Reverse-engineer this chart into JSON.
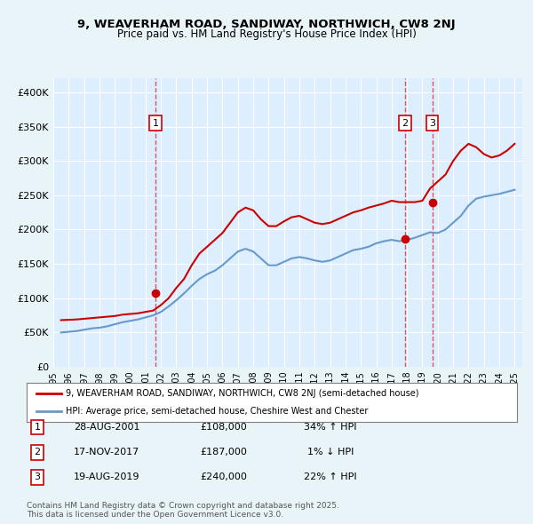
{
  "title1": "9, WEAVERHAM ROAD, SANDIWAY, NORTHWICH, CW8 2NJ",
  "title2": "Price paid vs. HM Land Registry's House Price Index (HPI)",
  "xlabel": "",
  "ylabel": "",
  "background_color": "#e8f4f8",
  "plot_bg_color": "#ddeeff",
  "line1_color": "#cc0000",
  "line2_color": "#6699cc",
  "grid_color": "#ffffff",
  "legend_box_color": "#ffffff",
  "sale_marker_color": "#cc0000",
  "sale_vline_color": "#dd4444",
  "ylim": [
    0,
    420000
  ],
  "yticks": [
    0,
    50000,
    100000,
    150000,
    200000,
    250000,
    300000,
    350000,
    400000
  ],
  "ytick_labels": [
    "£0",
    "£50K",
    "£100K",
    "£150K",
    "£200K",
    "£250K",
    "£300K",
    "£350K",
    "£400K"
  ],
  "sales": [
    {
      "date_num": 2001.66,
      "price": 108000,
      "label": "1"
    },
    {
      "date_num": 2017.88,
      "price": 187000,
      "label": "2"
    },
    {
      "date_num": 2019.64,
      "price": 240000,
      "label": "3"
    }
  ],
  "sale_vlines": [
    2001.66,
    2017.88,
    2019.64
  ],
  "legend_label1": "9, WEAVERHAM ROAD, SANDIWAY, NORTHWICH, CW8 2NJ (semi-detached house)",
  "legend_label2": "HPI: Average price, semi-detached house, Cheshire West and Chester",
  "table_rows": [
    {
      "num": "1",
      "date": "28-AUG-2001",
      "price": "£108,000",
      "hpi": "34% ↑ HPI"
    },
    {
      "num": "2",
      "date": "17-NOV-2017",
      "price": "£187,000",
      "hpi": "1% ↓ HPI"
    },
    {
      "num": "3",
      "date": "19-AUG-2019",
      "price": "£240,000",
      "hpi": "22% ↑ HPI"
    }
  ],
  "footer": "Contains HM Land Registry data © Crown copyright and database right 2025.\nThis data is licensed under the Open Government Licence v3.0.",
  "hpi_data": {
    "years": [
      1995.5,
      1996.0,
      1996.5,
      1997.0,
      1997.5,
      1998.0,
      1998.5,
      1999.0,
      1999.5,
      2000.0,
      2000.5,
      2001.0,
      2001.5,
      2002.0,
      2002.5,
      2003.0,
      2003.5,
      2004.0,
      2004.5,
      2005.0,
      2005.5,
      2006.0,
      2006.5,
      2007.0,
      2007.5,
      2008.0,
      2008.5,
      2009.0,
      2009.5,
      2010.0,
      2010.5,
      2011.0,
      2011.5,
      2012.0,
      2012.5,
      2013.0,
      2013.5,
      2014.0,
      2014.5,
      2015.0,
      2015.5,
      2016.0,
      2016.5,
      2017.0,
      2017.5,
      2018.0,
      2018.5,
      2019.0,
      2019.5,
      2020.0,
      2020.5,
      2021.0,
      2021.5,
      2022.0,
      2022.5,
      2023.0,
      2023.5,
      2024.0,
      2024.5,
      2025.0
    ],
    "hpi_values": [
      50000,
      51000,
      52000,
      54000,
      56000,
      57000,
      59000,
      62000,
      65000,
      67000,
      69000,
      72000,
      75000,
      80000,
      88000,
      97000,
      107000,
      118000,
      128000,
      135000,
      140000,
      148000,
      158000,
      168000,
      172000,
      168000,
      158000,
      148000,
      148000,
      153000,
      158000,
      160000,
      158000,
      155000,
      153000,
      155000,
      160000,
      165000,
      170000,
      172000,
      175000,
      180000,
      183000,
      185000,
      183000,
      185000,
      188000,
      192000,
      196000,
      195000,
      200000,
      210000,
      220000,
      235000,
      245000,
      248000,
      250000,
      252000,
      255000,
      258000
    ],
    "red_values": [
      68000,
      68500,
      69000,
      70000,
      71000,
      72000,
      73000,
      74000,
      76000,
      77000,
      78000,
      80000,
      82000,
      90000,
      100000,
      115000,
      128000,
      148000,
      165000,
      175000,
      185000,
      195000,
      210000,
      225000,
      232000,
      228000,
      215000,
      205000,
      205000,
      212000,
      218000,
      220000,
      215000,
      210000,
      208000,
      210000,
      215000,
      220000,
      225000,
      228000,
      232000,
      235000,
      238000,
      242000,
      240000,
      240000,
      240000,
      242000,
      260000,
      270000,
      280000,
      300000,
      315000,
      325000,
      320000,
      310000,
      305000,
      308000,
      315000,
      325000
    ]
  }
}
